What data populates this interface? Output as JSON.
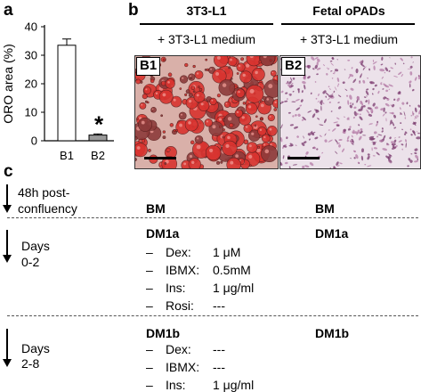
{
  "panel_a": {
    "letter": "a",
    "chart_data": {
      "type": "bar",
      "categories": [
        "B1",
        "B2"
      ],
      "values": [
        33.5,
        2
      ],
      "errors": [
        2.2,
        0.4
      ],
      "ylabel": "ORO area (%)",
      "ylim": [
        0,
        40
      ],
      "yticks": [
        "0",
        "10",
        "20",
        "30",
        "40"
      ],
      "significance_marker": "*",
      "bar_colors": [
        "#ffffff",
        "#999999"
      ]
    }
  },
  "panel_b": {
    "letter": "b",
    "col1_header": "3T3-L1",
    "col1_sub": "+ 3T3-L1 medium",
    "col2_header": "Fetal oPADs",
    "col2_sub": "+ 3T3-L1 medium",
    "img1_label": "B1",
    "img2_label": "B2"
  },
  "panel_c": {
    "letter": "c",
    "stage1_line1": "48h post-",
    "stage1_line2": "confluency",
    "stage1_col1": "BM",
    "stage1_col2": "BM",
    "stage2_line1": "Days",
    "stage2_line2": "0-2",
    "stage2_col1_title": "DM1a",
    "stage2_col2_title": "DM1a",
    "stage2_items": [
      {
        "dash": "–",
        "label": "Dex:",
        "value": "1 μM"
      },
      {
        "dash": "–",
        "label": "IBMX:",
        "value": "0.5mM"
      },
      {
        "dash": "–",
        "label": "Ins:",
        "value": "1 μg/ml"
      },
      {
        "dash": "–",
        "label": "Rosi:",
        "value": "---"
      }
    ],
    "stage3_line1": "Days",
    "stage3_line2": "2-8",
    "stage3_col1_title": "DM1b",
    "stage3_col2_title": "DM1b",
    "stage3_items": [
      {
        "dash": "–",
        "label": "Dex:",
        "value": "---"
      },
      {
        "dash": "–",
        "label": "IBMX:",
        "value": "---"
      },
      {
        "dash": "–",
        "label": "Ins:",
        "value": "1 μg/ml"
      }
    ]
  }
}
